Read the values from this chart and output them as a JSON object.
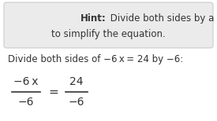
{
  "hint_bold": "Hint:",
  "hint_rest_line1": " Divide both sides by a constant",
  "hint_line2": "to simplify the equation.",
  "instruction": "Divide both sides of −6 x = 24 by −6:",
  "box_bg": "#ebebeb",
  "box_edge": "#cccccc",
  "text_color": "#333333",
  "fig_bg": "#ffffff",
  "frac_left_num": "−6 x",
  "frac_left_den": "−6",
  "frac_right_num": "24",
  "frac_right_den": "−6",
  "equals": "="
}
